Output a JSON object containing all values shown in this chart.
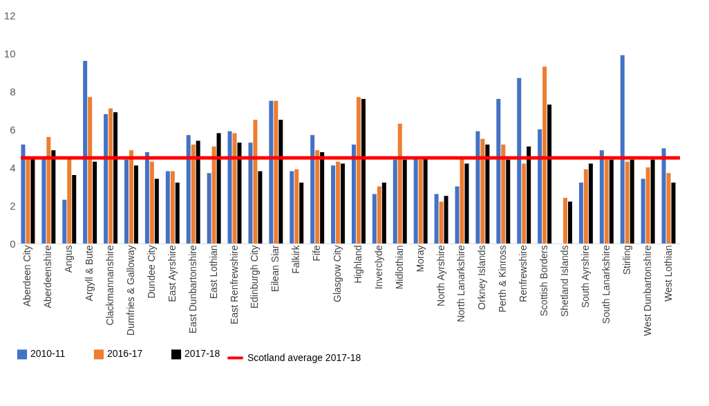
{
  "chart_data": {
    "type": "bar",
    "categories": [
      "Aberdeen City",
      "Aberdeenshire",
      "Angus",
      "Argyll & Bute",
      "Clackmannanshire",
      "Dumfries & Galloway",
      "Dundee City",
      "East Ayrshire",
      "East Dunbartonshire",
      "East Lothian",
      "East Renfrewshire",
      "Edinburgh City",
      "Eilean Siar",
      "Falkirk",
      "Fife",
      "Glasgow City",
      "Highland",
      "Inverclyde",
      "Midlothian",
      "Moray",
      "North Ayrshire",
      "North Lanarkshire",
      "Orkney Islands",
      "Perth & Kinross",
      "Renfrewshire",
      "Scottish Borders",
      "Shetland Islands",
      "South Ayrshire",
      "South Lanarkshire",
      "Stirling",
      "West Dunbartonshire",
      "West Lothian"
    ],
    "series": [
      {
        "name": "2010-11",
        "color": "#4472c4",
        "values": [
          5.2,
          4.5,
          2.3,
          9.6,
          6.8,
          4.4,
          4.8,
          3.8,
          5.7,
          3.7,
          5.9,
          5.3,
          7.5,
          3.8,
          5.7,
          4.1,
          5.2,
          2.6,
          4.4,
          4.5,
          2.6,
          3.0,
          5.9,
          7.6,
          8.7,
          6.0,
          null,
          3.2,
          4.9,
          9.9,
          3.4,
          5.0
        ]
      },
      {
        "name": "2016-17",
        "color": "#ed7d31",
        "values": [
          4.5,
          5.6,
          4.5,
          7.7,
          7.1,
          4.9,
          4.3,
          3.8,
          5.2,
          5.1,
          5.8,
          6.5,
          7.5,
          3.9,
          4.9,
          4.3,
          7.7,
          3.0,
          6.3,
          4.4,
          2.2,
          4.5,
          5.5,
          5.2,
          4.2,
          9.3,
          2.4,
          3.9,
          4.4,
          4.3,
          4.0,
          3.7
        ]
      },
      {
        "name": "2017-18",
        "color": "#000000",
        "values": [
          4.5,
          4.9,
          3.6,
          4.3,
          6.9,
          4.1,
          3.4,
          3.2,
          5.4,
          5.8,
          5.3,
          3.8,
          6.5,
          3.2,
          4.8,
          4.2,
          7.6,
          3.2,
          4.4,
          4.5,
          2.5,
          4.2,
          5.2,
          4.4,
          5.1,
          7.3,
          2.2,
          4.2,
          4.4,
          4.4,
          4.4,
          3.2
        ]
      }
    ],
    "ylim": [
      0,
      12
    ],
    "yticks": [
      0,
      2,
      4,
      6,
      8,
      10,
      12
    ],
    "ref_lines": [
      {
        "axis": "y",
        "value": 4.5,
        "label": "Scotland average 2017-18",
        "color": "#ff0000"
      }
    ],
    "grid": false,
    "legend": "bottom"
  }
}
